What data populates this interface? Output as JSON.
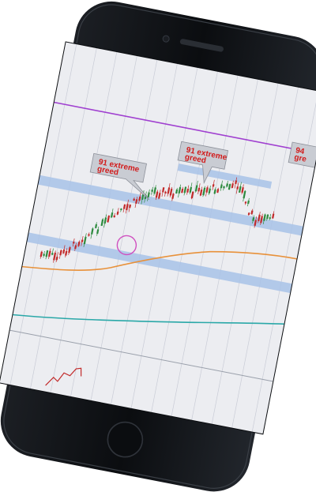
{
  "scene": {
    "subject": "smartphone",
    "phone_color": "#0b0d10",
    "screen_bg": "#ecedf1",
    "gridline_color": "#c9ccd6",
    "level_band_color": "#a8c2e8",
    "purple_line_color": "#a040d0",
    "orange_ma_color": "#e8913a",
    "teal_ma_color": "#2aa8a8",
    "candle_up_color": "#2d8a3e",
    "candle_down_color": "#c22a2a",
    "highlight_circle_color": "#d050c0",
    "callout_text_color": "#d21a1a",
    "callout_box_color": "#c9ccd3"
  },
  "callouts": [
    {
      "line1": "91 extreme",
      "line2": "greed"
    },
    {
      "line1": "91 extreme",
      "line2": "greed"
    },
    {
      "line1": "94",
      "line2": "gre"
    }
  ]
}
